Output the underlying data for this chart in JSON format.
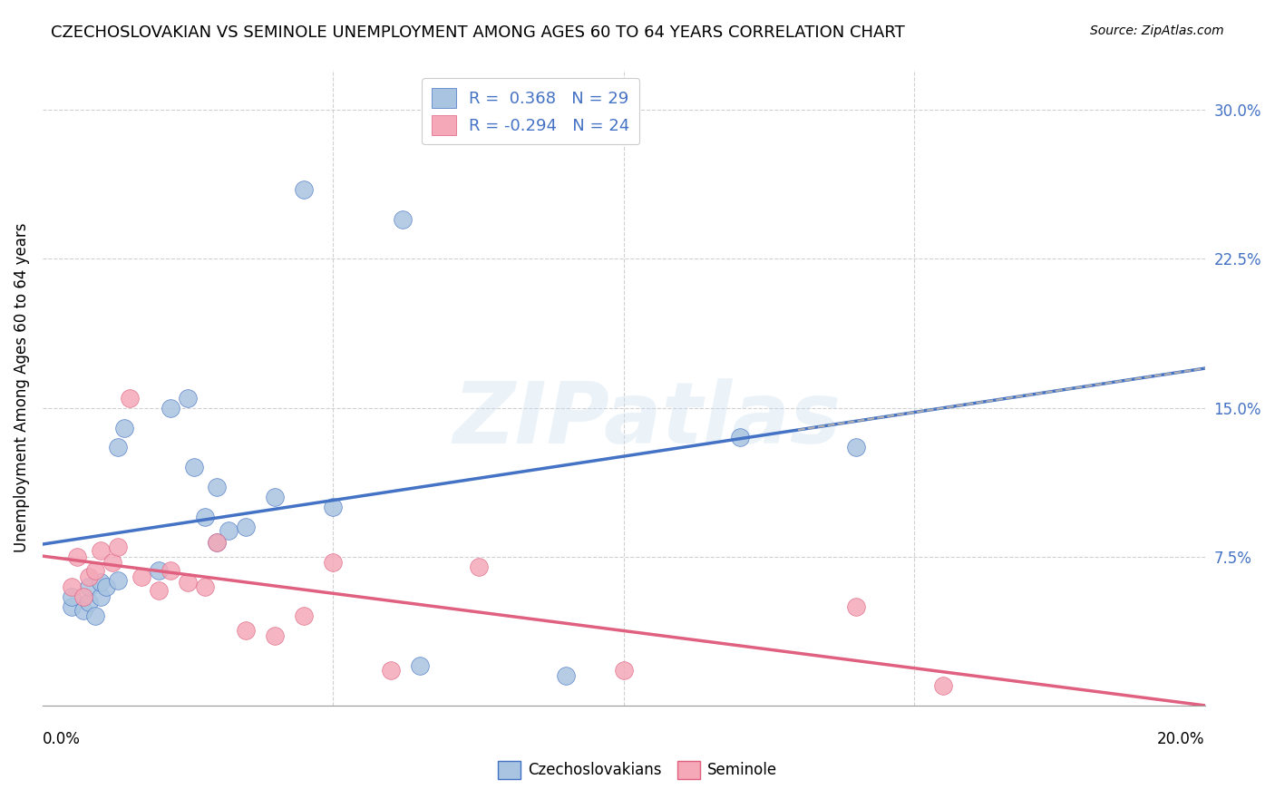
{
  "title": "CZECHOSLOVAKIAN VS SEMINOLE UNEMPLOYMENT AMONG AGES 60 TO 64 YEARS CORRELATION CHART",
  "source": "Source: ZipAtlas.com",
  "ylabel": "Unemployment Among Ages 60 to 64 years",
  "y_tick_labels": [
    "",
    "7.5%",
    "15.0%",
    "22.5%",
    "30.0%"
  ],
  "y_tick_values": [
    0,
    0.075,
    0.15,
    0.225,
    0.3
  ],
  "xlim": [
    0.0,
    0.2
  ],
  "ylim": [
    0.0,
    0.32
  ],
  "blue_color": "#a8c4e0",
  "pink_color": "#f4a8b8",
  "blue_line_color": "#4472c4",
  "pink_line_color": "#e06080",
  "dashed_line_color": "#b0b0b0",
  "czech_x": [
    0.005,
    0.005,
    0.007,
    0.008,
    0.008,
    0.009,
    0.01,
    0.01,
    0.011,
    0.013,
    0.013,
    0.014,
    0.02,
    0.022,
    0.025,
    0.026,
    0.028,
    0.03,
    0.03,
    0.032,
    0.035,
    0.04,
    0.045,
    0.05,
    0.062,
    0.065,
    0.09,
    0.12,
    0.14
  ],
  "czech_y": [
    0.05,
    0.055,
    0.048,
    0.052,
    0.06,
    0.045,
    0.055,
    0.062,
    0.06,
    0.063,
    0.13,
    0.14,
    0.068,
    0.15,
    0.155,
    0.12,
    0.095,
    0.11,
    0.082,
    0.088,
    0.09,
    0.105,
    0.26,
    0.1,
    0.245,
    0.02,
    0.015,
    0.135,
    0.13
  ],
  "seminole_x": [
    0.005,
    0.006,
    0.007,
    0.008,
    0.009,
    0.01,
    0.012,
    0.013,
    0.015,
    0.017,
    0.02,
    0.022,
    0.025,
    0.028,
    0.03,
    0.035,
    0.04,
    0.045,
    0.05,
    0.06,
    0.075,
    0.1,
    0.14,
    0.155
  ],
  "seminole_y": [
    0.06,
    0.075,
    0.055,
    0.065,
    0.068,
    0.078,
    0.072,
    0.08,
    0.155,
    0.065,
    0.058,
    0.068,
    0.062,
    0.06,
    0.082,
    0.038,
    0.035,
    0.045,
    0.072,
    0.018,
    0.07,
    0.018,
    0.05,
    0.01
  ],
  "background_color": "#ffffff",
  "plot_bg_color": "#ffffff"
}
